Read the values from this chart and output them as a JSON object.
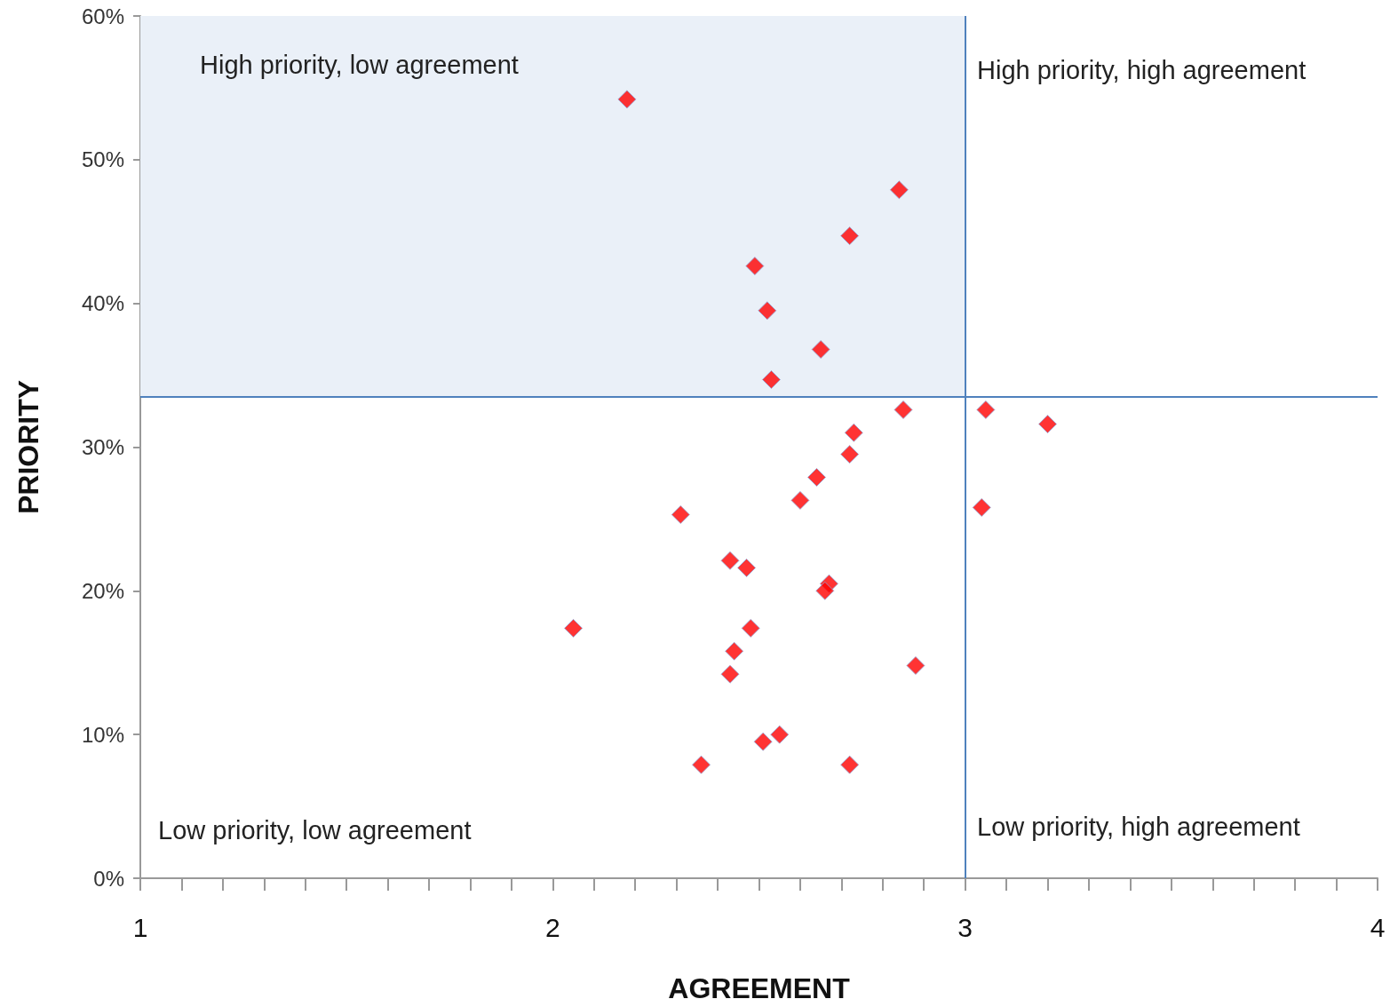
{
  "chart_data": {
    "type": "scatter",
    "xlabel": "AGREEMENT",
    "ylabel": "PRIORITY",
    "x": [
      2.18,
      2.84,
      2.72,
      2.49,
      2.52,
      2.65,
      2.53,
      2.85,
      3.05,
      3.2,
      2.73,
      2.72,
      2.64,
      2.6,
      2.31,
      3.04,
      2.43,
      2.47,
      2.67,
      2.66,
      2.05,
      2.48,
      2.44,
      2.88,
      2.43,
      2.55,
      2.51,
      2.36,
      2.72
    ],
    "series": [
      {
        "color": "#ff0000",
        "values": [
          54.2,
          47.9,
          44.7,
          42.6,
          39.5,
          36.8,
          34.7,
          32.6,
          32.6,
          31.6,
          31.0,
          29.5,
          27.9,
          26.3,
          25.3,
          25.8,
          22.1,
          21.6,
          20.5,
          20.0,
          17.4,
          17.4,
          15.8,
          14.8,
          14.2,
          10.0,
          9.5,
          7.9,
          7.9
        ]
      }
    ],
    "marker": "diamond",
    "grid": false,
    "xlim": [
      1,
      4
    ],
    "xticks": [
      1,
      {
        "value": 1.1,
        "label": null
      },
      {
        "value": 1.2,
        "label": null
      },
      {
        "value": 1.3,
        "label": null
      },
      {
        "value": 1.4,
        "label": null
      },
      {
        "value": 1.5,
        "label": null
      },
      {
        "value": 1.6,
        "label": null
      },
      {
        "value": 1.7,
        "label": null
      },
      {
        "value": 1.8,
        "label": null
      },
      {
        "value": 1.9,
        "label": null
      },
      2,
      {
        "value": 2.1,
        "label": null
      },
      {
        "value": 2.2,
        "label": null
      },
      {
        "value": 2.3,
        "label": null
      },
      {
        "value": 2.4,
        "label": null
      },
      {
        "value": 2.5,
        "label": null
      },
      {
        "value": 2.6,
        "label": null
      },
      {
        "value": 2.7,
        "label": null
      },
      {
        "value": 2.8,
        "label": null
      },
      {
        "value": 2.9,
        "label": null
      },
      3,
      {
        "value": 3.1,
        "label": null
      },
      {
        "value": 3.2,
        "label": null
      },
      {
        "value": 3.3,
        "label": null
      },
      {
        "value": 3.4,
        "label": null
      },
      {
        "value": 3.5,
        "label": null
      },
      {
        "value": 3.6,
        "label": null
      },
      {
        "value": 3.7,
        "label": null
      },
      {
        "value": 3.8,
        "label": null
      },
      {
        "value": 3.9,
        "label": null
      },
      4
    ],
    "ylim": [
      0,
      60
    ],
    "yticks": [
      {
        "value": 0,
        "label": "0%"
      },
      {
        "value": 10,
        "label": "10%"
      },
      {
        "value": 20,
        "label": "20%"
      },
      {
        "value": 30,
        "label": "30%"
      },
      {
        "value": 40,
        "label": "40%"
      },
      {
        "value": 50,
        "label": "50%"
      },
      {
        "value": 60,
        "label": "60%"
      }
    ],
    "ref_lines": [
      {
        "axis": "x",
        "value": 3,
        "color": "#4f81bd"
      },
      {
        "axis": "y",
        "value": 33.5,
        "color": "#4f81bd"
      }
    ],
    "bands": [
      {
        "axis": "y",
        "from": 33.5,
        "to": 60,
        "color": "#eaf0f8"
      }
    ],
    "annotations": [
      "High priority, low agreement",
      "High priority, high agreement",
      "Low priority, low agreement",
      "Low priority, high agreement"
    ]
  }
}
